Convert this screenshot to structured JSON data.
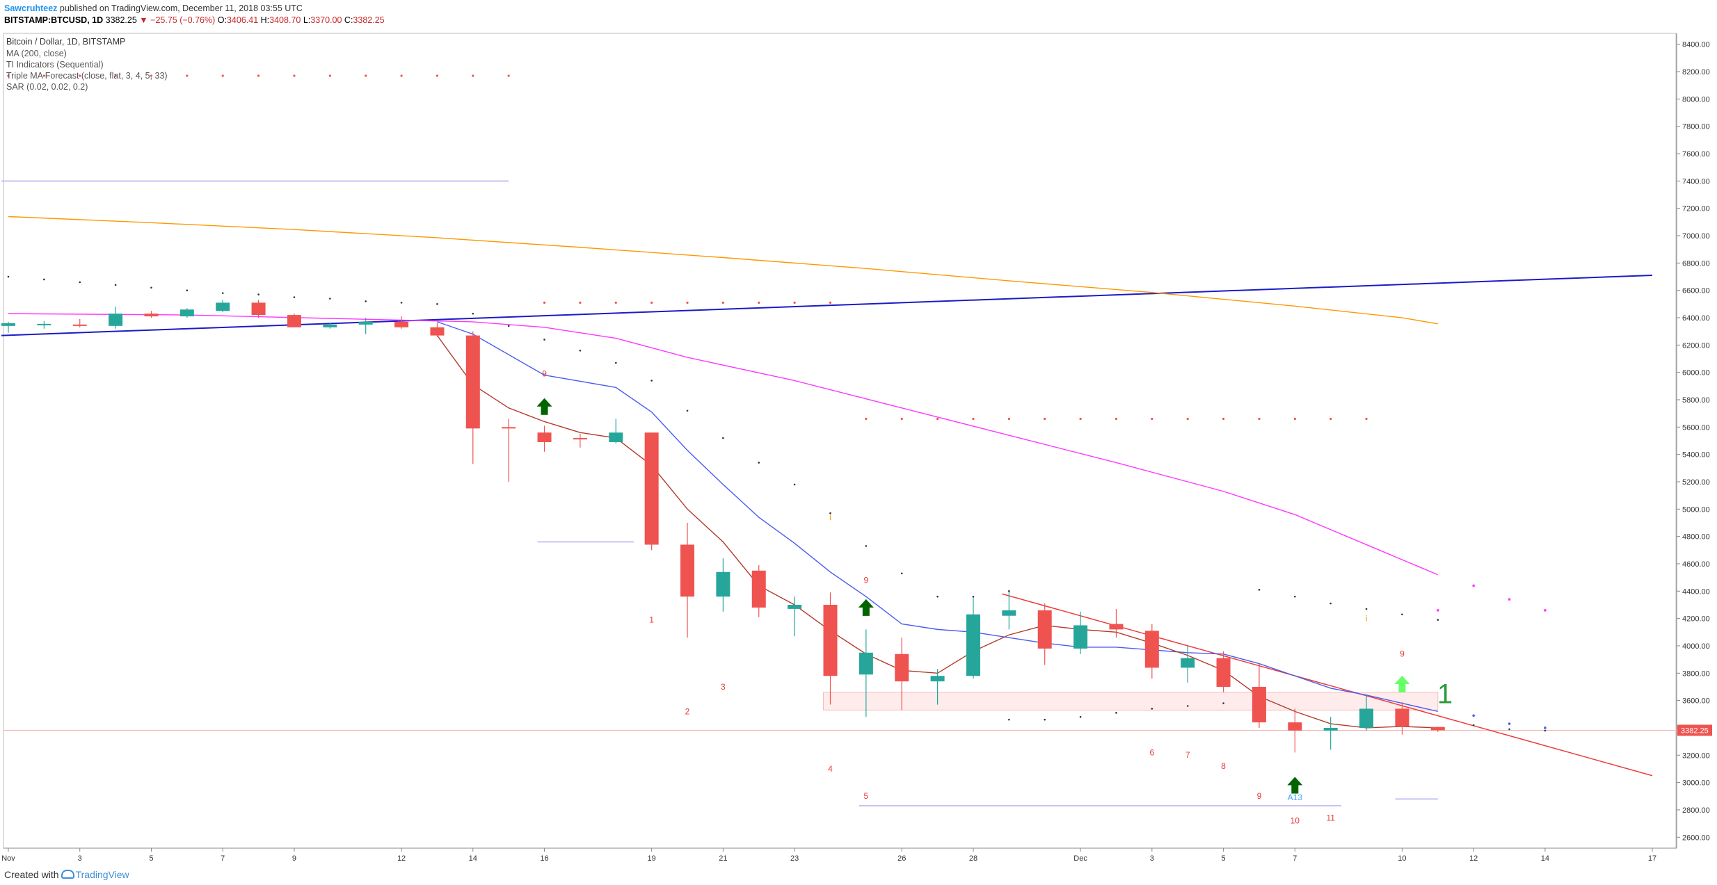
{
  "header": {
    "author": "Sawcruhteez",
    "published_text": "published on TradingView.com, December 11, 2018 03:55 UTC",
    "symbol": "BITSTAMP:BTCUSD, 1D",
    "last": "3382.25",
    "change_arrow": "▼",
    "change": "−25.75 (−0.76%)",
    "o_label": "O:",
    "o_value": "3406.41",
    "h_label": "H:",
    "h_value": "3408.70",
    "l_label": "L:",
    "l_value": "3370.00",
    "c_label": "C:",
    "c_value": "3382.25"
  },
  "legend": {
    "title": "Bitcoin / Dollar, 1D, BITSTAMP",
    "indicators": [
      "MA (200, close)",
      "TI Indicators (Sequential)",
      "Triple MA Forecast (close, flat, 3, 4, 5, 33)",
      "SAR (0.02, 0.02, 0.2)"
    ]
  },
  "footer": {
    "created_with": "Created with",
    "brand": "TradingView"
  },
  "colors": {
    "bull": "#26a69a",
    "bear": "#ef5350",
    "ma200": "#ff9800",
    "ma_magenta": "#ff36ff",
    "ma_blue": "#4a5cf0",
    "ma_brown": "#b23a2a",
    "trend_navy": "#1b1bc7",
    "trend_red": "#ef3b3b",
    "sar": "#333333",
    "arrow_up": "#006400",
    "arrow_up_light": "#66ff66"
  },
  "chart_data": {
    "type": "candlestick",
    "title": "Bitcoin / Dollar, 1D, BITSTAMP",
    "y_axis": {
      "min": 2520,
      "max": 8480,
      "ticks": [
        2600,
        2800,
        3000,
        3200,
        3400,
        3600,
        3800,
        4000,
        4200,
        4400,
        4600,
        4800,
        5000,
        5200,
        5400,
        5600,
        5800,
        6000,
        6200,
        6400,
        6600,
        6800,
        7000,
        7200,
        7400,
        7600,
        7800,
        8000,
        8200,
        8400
      ],
      "position": "right",
      "decimals": 2
    },
    "x_axis": {
      "first_day": 1,
      "last_day": 47,
      "labels": [
        {
          "day": 1,
          "text": "Nov"
        },
        {
          "day": 3,
          "text": "3"
        },
        {
          "day": 5,
          "text": "5"
        },
        {
          "day": 7,
          "text": "7"
        },
        {
          "day": 9,
          "text": "9"
        },
        {
          "day": 12,
          "text": "12"
        },
        {
          "day": 14,
          "text": "14"
        },
        {
          "day": 16,
          "text": "16"
        },
        {
          "day": 19,
          "text": "19"
        },
        {
          "day": 21,
          "text": "21"
        },
        {
          "day": 23,
          "text": "23"
        },
        {
          "day": 26,
          "text": "26"
        },
        {
          "day": 28,
          "text": "28"
        },
        {
          "day": 31,
          "text": "Dec"
        },
        {
          "day": 33,
          "text": "3"
        },
        {
          "day": 35,
          "text": "5"
        },
        {
          "day": 37,
          "text": "7"
        },
        {
          "day": 40,
          "text": "10"
        },
        {
          "day": 42,
          "text": "12"
        },
        {
          "day": 44,
          "text": "14"
        },
        {
          "day": 47,
          "text": "17"
        }
      ]
    },
    "last_price": {
      "value": 3382.25,
      "label": "3382.25"
    },
    "candles": [
      {
        "day": 1,
        "o": 6340,
        "h": 6370,
        "l": 6290,
        "c": 6360
      },
      {
        "day": 2,
        "o": 6345,
        "h": 6375,
        "l": 6320,
        "c": 6355
      },
      {
        "day": 3,
        "o": 6350,
        "h": 6390,
        "l": 6330,
        "c": 6340
      },
      {
        "day": 4,
        "o": 6340,
        "h": 6480,
        "l": 6320,
        "c": 6430
      },
      {
        "day": 5,
        "o": 6430,
        "h": 6450,
        "l": 6400,
        "c": 6410
      },
      {
        "day": 6,
        "o": 6410,
        "h": 6470,
        "l": 6400,
        "c": 6460
      },
      {
        "day": 7,
        "o": 6450,
        "h": 6530,
        "l": 6440,
        "c": 6510
      },
      {
        "day": 8,
        "o": 6510,
        "h": 6530,
        "l": 6400,
        "c": 6420
      },
      {
        "day": 9,
        "o": 6420,
        "h": 6430,
        "l": 6330,
        "c": 6330
      },
      {
        "day": 10,
        "o": 6330,
        "h": 6360,
        "l": 6320,
        "c": 6350
      },
      {
        "day": 11,
        "o": 6350,
        "h": 6400,
        "l": 6280,
        "c": 6370
      },
      {
        "day": 12,
        "o": 6370,
        "h": 6410,
        "l": 6320,
        "c": 6330
      },
      {
        "day": 13,
        "o": 6330,
        "h": 6360,
        "l": 6260,
        "c": 6270
      },
      {
        "day": 14,
        "o": 6270,
        "h": 6300,
        "l": 5330,
        "c": 5590
      },
      {
        "day": 15,
        "o": 5600,
        "h": 5660,
        "l": 5200,
        "c": 5590
      },
      {
        "day": 16,
        "o": 5560,
        "h": 5610,
        "l": 5420,
        "c": 5490
      },
      {
        "day": 17,
        "o": 5520,
        "h": 5550,
        "l": 5450,
        "c": 5510
      },
      {
        "day": 18,
        "o": 5490,
        "h": 5660,
        "l": 5480,
        "c": 5560
      },
      {
        "day": 19,
        "o": 5560,
        "h": 5560,
        "l": 4700,
        "c": 4740
      },
      {
        "day": 20,
        "o": 4740,
        "h": 4900,
        "l": 4060,
        "c": 4360
      },
      {
        "day": 21,
        "o": 4360,
        "h": 4640,
        "l": 4250,
        "c": 4540
      },
      {
        "day": 22,
        "o": 4550,
        "h": 4590,
        "l": 4210,
        "c": 4280
      },
      {
        "day": 23,
        "o": 4270,
        "h": 4360,
        "l": 4070,
        "c": 4300
      },
      {
        "day": 24,
        "o": 4300,
        "h": 4390,
        "l": 3570,
        "c": 3780
      },
      {
        "day": 25,
        "o": 3790,
        "h": 4120,
        "l": 3480,
        "c": 3950
      },
      {
        "day": 26,
        "o": 3940,
        "h": 4060,
        "l": 3530,
        "c": 3740
      },
      {
        "day": 27,
        "o": 3740,
        "h": 3830,
        "l": 3570,
        "c": 3780
      },
      {
        "day": 28,
        "o": 3780,
        "h": 4360,
        "l": 3760,
        "c": 4230
      },
      {
        "day": 29,
        "o": 4220,
        "h": 4410,
        "l": 4120,
        "c": 4260
      },
      {
        "day": 30,
        "o": 4260,
        "h": 4310,
        "l": 3860,
        "c": 3980
      },
      {
        "day": 31,
        "o": 3980,
        "h": 4250,
        "l": 3940,
        "c": 4150
      },
      {
        "day": 32,
        "o": 4160,
        "h": 4270,
        "l": 4060,
        "c": 4120
      },
      {
        "day": 33,
        "o": 4110,
        "h": 4160,
        "l": 3760,
        "c": 3840
      },
      {
        "day": 34,
        "o": 3840,
        "h": 4000,
        "l": 3730,
        "c": 3910
      },
      {
        "day": 35,
        "o": 3910,
        "h": 3960,
        "l": 3660,
        "c": 3700
      },
      {
        "day": 36,
        "o": 3700,
        "h": 3870,
        "l": 3400,
        "c": 3440
      },
      {
        "day": 37,
        "o": 3440,
        "h": 3540,
        "l": 3220,
        "c": 3380
      },
      {
        "day": 38,
        "o": 3380,
        "h": 3480,
        "l": 3240,
        "c": 3400
      },
      {
        "day": 39,
        "o": 3400,
        "h": 3640,
        "l": 3380,
        "c": 3540
      },
      {
        "day": 40,
        "o": 3540,
        "h": 3590,
        "l": 3350,
        "c": 3410
      },
      {
        "day": 41,
        "o": 3406.41,
        "h": 3408.7,
        "l": 3370.0,
        "c": 3382.25
      }
    ],
    "series": [
      {
        "name": "MA (200, close)",
        "color": "#ff9800",
        "points": [
          [
            1,
            7140
          ],
          [
            5,
            7095
          ],
          [
            9,
            7045
          ],
          [
            13,
            6985
          ],
          [
            17,
            6915
          ],
          [
            21,
            6840
          ],
          [
            25,
            6760
          ],
          [
            29,
            6670
          ],
          [
            33,
            6585
          ],
          [
            37,
            6485
          ],
          [
            40,
            6400
          ],
          [
            41,
            6355
          ]
        ]
      },
      {
        "color": "#ff36ff",
        "points": [
          [
            1,
            6430
          ],
          [
            6,
            6420
          ],
          [
            10,
            6395
          ],
          [
            14,
            6370
          ],
          [
            16,
            6330
          ],
          [
            18,
            6250
          ],
          [
            20,
            6110
          ],
          [
            23,
            5940
          ],
          [
            26,
            5740
          ],
          [
            29,
            5540
          ],
          [
            32,
            5340
          ],
          [
            35,
            5130
          ],
          [
            37,
            4960
          ],
          [
            39,
            4740
          ],
          [
            41,
            4520
          ]
        ]
      },
      {
        "color": "#4a5cf0",
        "points": [
          [
            13,
            6370
          ],
          [
            14,
            6280
          ],
          [
            16,
            5980
          ],
          [
            18,
            5890
          ],
          [
            19,
            5710
          ],
          [
            20,
            5430
          ],
          [
            21,
            5180
          ],
          [
            22,
            4940
          ],
          [
            23,
            4750
          ],
          [
            24,
            4540
          ],
          [
            25,
            4360
          ],
          [
            26,
            4160
          ],
          [
            27,
            4120
          ],
          [
            28,
            4100
          ],
          [
            29,
            4060
          ],
          [
            30,
            4020
          ],
          [
            31,
            3990
          ],
          [
            32,
            3990
          ],
          [
            33,
            3970
          ],
          [
            34,
            3950
          ],
          [
            35,
            3940
          ],
          [
            36,
            3870
          ],
          [
            37,
            3780
          ],
          [
            38,
            3690
          ],
          [
            39,
            3640
          ],
          [
            40,
            3580
          ],
          [
            41,
            3520
          ]
        ]
      },
      {
        "color": "#b23a2a",
        "points": [
          [
            13,
            6270
          ],
          [
            14,
            5910
          ],
          [
            15,
            5740
          ],
          [
            16,
            5640
          ],
          [
            17,
            5560
          ],
          [
            18,
            5520
          ],
          [
            19,
            5320
          ],
          [
            20,
            5000
          ],
          [
            21,
            4760
          ],
          [
            22,
            4440
          ],
          [
            23,
            4300
          ],
          [
            24,
            4110
          ],
          [
            25,
            3940
          ],
          [
            26,
            3820
          ],
          [
            27,
            3800
          ],
          [
            28,
            3960
          ],
          [
            29,
            4080
          ],
          [
            30,
            4150
          ],
          [
            31,
            4120
          ],
          [
            32,
            4100
          ],
          [
            33,
            4020
          ],
          [
            34,
            3930
          ],
          [
            35,
            3820
          ],
          [
            36,
            3630
          ],
          [
            37,
            3520
          ],
          [
            38,
            3430
          ],
          [
            39,
            3400
          ],
          [
            40,
            3410
          ],
          [
            41,
            3400
          ]
        ]
      }
    ],
    "trendlines": [
      {
        "color": "#1b1bc7",
        "from": [
          1,
          6270
        ],
        "to": [
          47,
          6710
        ]
      },
      {
        "color": "#ef3b3b",
        "from": [
          29,
          4380
        ],
        "to": [
          47,
          3050
        ]
      }
    ],
    "horizontal_lines": [
      {
        "color": "#b0b0f0",
        "from_day": 1,
        "to_day": 15,
        "y": 7400
      },
      {
        "color": "#b0b0f0",
        "from_day": 16,
        "to_day": 18.5,
        "y": 4760
      },
      {
        "color": "#b0b0f0",
        "from_day": 25,
        "to_day": 38.3,
        "y": 2830
      },
      {
        "color": "#b0b0f0",
        "from_day": 40,
        "to_day": 41,
        "y": 2880
      }
    ],
    "zone": {
      "from_day": 24,
      "to_day": 41,
      "y_low": 3530,
      "y_high": 3660
    },
    "sar_above": [
      [
        1,
        6700
      ],
      [
        2,
        6680
      ],
      [
        3,
        6660
      ],
      [
        4,
        6640
      ],
      [
        5,
        6620
      ],
      [
        6,
        6600
      ],
      [
        7,
        6580
      ],
      [
        8,
        6570
      ],
      [
        9,
        6550
      ],
      [
        10,
        6540
      ],
      [
        11,
        6520
      ],
      [
        12,
        6510
      ],
      [
        13,
        6500
      ],
      [
        14,
        6430
      ],
      [
        15,
        6340
      ],
      [
        16,
        6240
      ],
      [
        17,
        6160
      ],
      [
        18,
        6070
      ],
      [
        19,
        5940
      ],
      [
        20,
        5720
      ],
      [
        21,
        5520
      ],
      [
        22,
        5340
      ],
      [
        23,
        5180
      ],
      [
        24,
        4970
      ],
      [
        25,
        4730
      ],
      [
        26,
        4530
      ],
      [
        27,
        4360
      ],
      [
        28,
        4360
      ],
      [
        29,
        4400
      ],
      [
        36,
        4410
      ],
      [
        37,
        4360
      ],
      [
        38,
        4310
      ],
      [
        39,
        4270
      ],
      [
        40,
        4230
      ],
      [
        41,
        4190
      ]
    ],
    "sar_below": [
      [
        29,
        3460
      ],
      [
        30,
        3460
      ],
      [
        31,
        3480
      ],
      [
        32,
        3510
      ],
      [
        33,
        3540
      ],
      [
        34,
        3560
      ],
      [
        35,
        3580
      ],
      [
        42,
        3420
      ],
      [
        43,
        3390
      ],
      [
        44,
        3380
      ]
    ],
    "resistance_dots": [
      {
        "y": 8170,
        "from_day": 1,
        "to_day": 15
      },
      {
        "y": 6510,
        "from_day": 16,
        "to_day": 24
      },
      {
        "y": 5660,
        "from_day": 25,
        "to_day": 39
      }
    ],
    "forecast_dots": [
      [
        41,
        4260
      ],
      [
        42,
        4440
      ],
      [
        43,
        4340
      ],
      [
        44,
        4260
      ],
      [
        42,
        3490
      ],
      [
        43,
        3430
      ],
      [
        44,
        3400
      ]
    ],
    "setup_counts": [
      {
        "day": 16,
        "y": 5970,
        "text": "9",
        "color": "#e53935"
      },
      {
        "day": 19,
        "y": 4170,
        "text": "1",
        "color": "#e53935"
      },
      {
        "day": 20,
        "y": 3500,
        "text": "2",
        "color": "#e53935"
      },
      {
        "day": 21,
        "y": 3680,
        "text": "3",
        "color": "#e53935"
      },
      {
        "day": 24,
        "y": 3080,
        "text": "4",
        "color": "#e53935"
      },
      {
        "day": 24,
        "y": 4920,
        "text": "i",
        "color": "#ff9800"
      },
      {
        "day": 25,
        "y": 2880,
        "text": "5",
        "color": "#e53935"
      },
      {
        "day": 25,
        "y": 4460,
        "text": "9",
        "color": "#e53935"
      },
      {
        "day": 33,
        "y": 3200,
        "text": "6",
        "color": "#e53935"
      },
      {
        "day": 34,
        "y": 3180,
        "text": "7",
        "color": "#e53935"
      },
      {
        "day": 35,
        "y": 3100,
        "text": "8",
        "color": "#e53935"
      },
      {
        "day": 36,
        "y": 2880,
        "text": "9",
        "color": "#e53935"
      },
      {
        "day": 37,
        "y": 2870,
        "text": "A13",
        "color": "#42a5f5"
      },
      {
        "day": 37,
        "y": 2700,
        "text": "10",
        "color": "#e53935"
      },
      {
        "day": 38,
        "y": 2720,
        "text": "11",
        "color": "#e53935"
      },
      {
        "day": 39,
        "y": 4180,
        "text": "i",
        "color": "#ff9800"
      },
      {
        "day": 40,
        "y": 3920,
        "text": "9",
        "color": "#e53935"
      },
      {
        "day": 41.2,
        "y": 3580,
        "text": "1",
        "color": "#2e9b3e",
        "big": true
      }
    ],
    "arrows": [
      {
        "day": 16,
        "y": 5740,
        "color": "#006400"
      },
      {
        "day": 25,
        "y": 4270,
        "color": "#006400"
      },
      {
        "day": 37,
        "y": 2970,
        "color": "#006400"
      },
      {
        "day": 40,
        "y": 3710,
        "color": "#66ff66"
      }
    ]
  }
}
